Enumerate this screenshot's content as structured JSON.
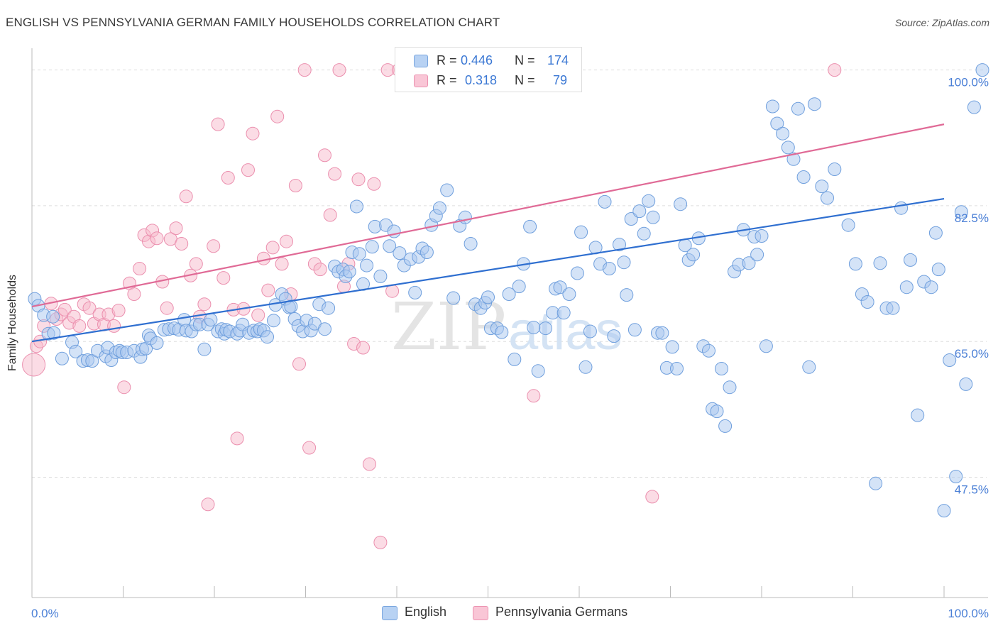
{
  "title": "ENGLISH VS PENNSYLVANIA GERMAN FAMILY HOUSEHOLDS CORRELATION CHART",
  "source": "Source: ZipAtlas.com",
  "watermark": {
    "zip": "ZIP",
    "atlas": "atlas"
  },
  "legend_top": [
    {
      "r_label": "R =",
      "r_value": "0.446",
      "n_label": "N =",
      "n_value": "174"
    },
    {
      "r_label": "R =",
      "r_value": "0.318",
      "n_label": "N =",
      "n_value": "79"
    }
  ],
  "colors": {
    "english_fill": "#a9c8f0",
    "english_stroke": "#6f9fdd",
    "english_line": "#2f6fd0",
    "pg_fill": "#f7b9cc",
    "pg_stroke": "#eb8fae",
    "pg_line": "#e06a96",
    "axis_text": "#4a7fd6",
    "grid": "#dddddd"
  },
  "chart_data": {
    "type": "scatter",
    "title": "ENGLISH VS PENNSYLVANIA GERMAN FAMILY HOUSEHOLDS CORRELATION CHART",
    "xlabel": "",
    "ylabel": "Family Households",
    "xlim": [
      0,
      100
    ],
    "ylim": [
      32,
      101.7
    ],
    "x_tick_labels": [
      "0.0%",
      "100.0%"
    ],
    "y_ticks": [
      47.5,
      65.0,
      82.5,
      100.0
    ],
    "y_tick_labels": [
      "47.5%",
      "65.0%",
      "82.5%",
      "100.0%"
    ],
    "grid": true,
    "legend": "bottom",
    "series": [
      {
        "name": "English",
        "r": 0.446,
        "n": 174,
        "trend": {
          "x": [
            0,
            100
          ],
          "y": [
            65.0,
            83.4
          ]
        },
        "points": [
          [
            0.3,
            70.5
          ],
          [
            0.7,
            69.6
          ],
          [
            1.3,
            68.4
          ],
          [
            1.8,
            66.0
          ],
          [
            2.3,
            68.2
          ],
          [
            2.4,
            66.1
          ],
          [
            3.3,
            62.8
          ],
          [
            4.4,
            64.9
          ],
          [
            4.8,
            63.7
          ],
          [
            5.6,
            62.5
          ],
          [
            6.1,
            62.6
          ],
          [
            6.6,
            62.5
          ],
          [
            7.2,
            63.8
          ],
          [
            8.1,
            63.1
          ],
          [
            8.3,
            64.2
          ],
          [
            8.7,
            62.6
          ],
          [
            9.2,
            63.6
          ],
          [
            9.6,
            63.8
          ],
          [
            9.9,
            63.6
          ],
          [
            10.4,
            63.6
          ],
          [
            11.2,
            63.8
          ],
          [
            11.9,
            63.0
          ],
          [
            12.1,
            64.0
          ],
          [
            12.5,
            64.1
          ],
          [
            12.8,
            65.8
          ],
          [
            13.0,
            65.4
          ],
          [
            13.7,
            64.8
          ],
          [
            14.5,
            66.5
          ],
          [
            15.0,
            66.6
          ],
          [
            15.6,
            66.7
          ],
          [
            16.1,
            66.5
          ],
          [
            16.7,
            67.8
          ],
          [
            16.9,
            66.4
          ],
          [
            17.5,
            66.3
          ],
          [
            18.0,
            67.2
          ],
          [
            18.4,
            67.2
          ],
          [
            18.9,
            64.0
          ],
          [
            19.3,
            67.2
          ],
          [
            19.6,
            67.8
          ],
          [
            20.4,
            66.3
          ],
          [
            20.8,
            66.6
          ],
          [
            21.1,
            66.0
          ],
          [
            21.3,
            66.5
          ],
          [
            21.7,
            66.3
          ],
          [
            22.5,
            66.0
          ],
          [
            22.8,
            66.4
          ],
          [
            23.1,
            67.2
          ],
          [
            23.8,
            66.1
          ],
          [
            24.3,
            66.4
          ],
          [
            24.7,
            66.3
          ],
          [
            25.0,
            66.6
          ],
          [
            25.4,
            66.4
          ],
          [
            25.8,
            65.6
          ],
          [
            26.5,
            67.7
          ],
          [
            26.7,
            69.7
          ],
          [
            27.4,
            71.1
          ],
          [
            27.8,
            70.5
          ],
          [
            28.2,
            69.4
          ],
          [
            28.4,
            69.5
          ],
          [
            28.8,
            67.9
          ],
          [
            29.2,
            67.0
          ],
          [
            29.7,
            66.3
          ],
          [
            30.1,
            67.7
          ],
          [
            30.6,
            66.4
          ],
          [
            31.0,
            67.3
          ],
          [
            31.5,
            69.8
          ],
          [
            32.1,
            66.6
          ],
          [
            32.5,
            69.3
          ],
          [
            33.2,
            74.7
          ],
          [
            33.6,
            74.0
          ],
          [
            34.1,
            74.3
          ],
          [
            34.4,
            73.4
          ],
          [
            34.8,
            74.0
          ],
          [
            35.1,
            76.5
          ],
          [
            35.6,
            82.4
          ],
          [
            35.9,
            76.3
          ],
          [
            36.3,
            72.4
          ],
          [
            36.7,
            74.8
          ],
          [
            37.3,
            77.2
          ],
          [
            37.6,
            79.8
          ],
          [
            38.2,
            73.4
          ],
          [
            38.8,
            80.0
          ],
          [
            39.2,
            77.3
          ],
          [
            39.7,
            79.2
          ],
          [
            40.3,
            76.4
          ],
          [
            40.8,
            74.8
          ],
          [
            41.5,
            75.6
          ],
          [
            42.0,
            71.3
          ],
          [
            42.4,
            75.9
          ],
          [
            42.8,
            77.0
          ],
          [
            43.3,
            76.5
          ],
          [
            43.8,
            80.0
          ],
          [
            44.3,
            81.2
          ],
          [
            44.7,
            82.2
          ],
          [
            45.5,
            84.5
          ],
          [
            46.2,
            70.6
          ],
          [
            46.9,
            79.9
          ],
          [
            47.5,
            81.0
          ],
          [
            48.1,
            77.6
          ],
          [
            48.6,
            69.8
          ],
          [
            49.2,
            69.3
          ],
          [
            49.7,
            70.0
          ],
          [
            50.0,
            70.7
          ],
          [
            50.3,
            66.7
          ],
          [
            51.0,
            66.7
          ],
          [
            51.5,
            66.2
          ],
          [
            52.3,
            71.1
          ],
          [
            52.9,
            62.7
          ],
          [
            53.4,
            72.1
          ],
          [
            53.9,
            75.0
          ],
          [
            54.6,
            79.8
          ],
          [
            55.0,
            66.8
          ],
          [
            55.5,
            61.2
          ],
          [
            56.3,
            66.7
          ],
          [
            57.1,
            68.7
          ],
          [
            57.4,
            71.8
          ],
          [
            57.9,
            72.0
          ],
          [
            58.3,
            68.7
          ],
          [
            58.9,
            71.1
          ],
          [
            59.8,
            73.8
          ],
          [
            60.2,
            79.1
          ],
          [
            60.7,
            61.7
          ],
          [
            61.2,
            66.3
          ],
          [
            61.8,
            77.1
          ],
          [
            62.3,
            75.0
          ],
          [
            62.8,
            83.0
          ],
          [
            63.3,
            74.4
          ],
          [
            63.8,
            65.7
          ],
          [
            64.4,
            77.5
          ],
          [
            64.9,
            75.2
          ],
          [
            65.2,
            71.0
          ],
          [
            65.7,
            80.8
          ],
          [
            66.1,
            66.5
          ],
          [
            66.6,
            81.8
          ],
          [
            67.1,
            78.9
          ],
          [
            67.6,
            83.1
          ],
          [
            68.1,
            81.0
          ],
          [
            68.6,
            66.1
          ],
          [
            69.1,
            66.1
          ],
          [
            69.6,
            61.6
          ],
          [
            70.2,
            64.3
          ],
          [
            70.7,
            61.5
          ],
          [
            71.1,
            82.7
          ],
          [
            71.6,
            77.4
          ],
          [
            72.0,
            75.5
          ],
          [
            72.5,
            76.2
          ],
          [
            73.1,
            78.3
          ],
          [
            73.6,
            64.4
          ],
          [
            74.2,
            63.8
          ],
          [
            74.6,
            56.3
          ],
          [
            75.1,
            56.0
          ],
          [
            75.6,
            61.5
          ],
          [
            76.0,
            54.1
          ],
          [
            76.5,
            59.1
          ],
          [
            77.0,
            74.0
          ],
          [
            77.5,
            74.9
          ],
          [
            78.0,
            79.4
          ],
          [
            78.6,
            75.1
          ],
          [
            79.2,
            78.5
          ],
          [
            79.5,
            76.2
          ],
          [
            80.0,
            78.6
          ],
          [
            80.5,
            64.4
          ],
          [
            81.2,
            95.3
          ],
          [
            81.7,
            93.1
          ],
          [
            82.3,
            91.8
          ],
          [
            82.9,
            90.0
          ],
          [
            83.5,
            88.5
          ],
          [
            84.0,
            95.0
          ],
          [
            84.6,
            86.2
          ],
          [
            85.2,
            61.7
          ],
          [
            85.8,
            95.6
          ],
          [
            86.6,
            85.0
          ],
          [
            87.2,
            83.5
          ],
          [
            88.0,
            87.2
          ],
          [
            89.5,
            80.0
          ],
          [
            90.3,
            75.0
          ],
          [
            91.0,
            71.1
          ],
          [
            91.6,
            70.1
          ],
          [
            92.5,
            46.7
          ],
          [
            93.0,
            75.1
          ],
          [
            93.7,
            69.3
          ],
          [
            94.4,
            69.3
          ],
          [
            95.3,
            82.2
          ],
          [
            95.9,
            72.0
          ],
          [
            96.3,
            75.5
          ],
          [
            97.1,
            55.5
          ],
          [
            97.8,
            72.7
          ],
          [
            98.6,
            72.0
          ],
          [
            99.1,
            79.0
          ],
          [
            99.4,
            74.3
          ],
          [
            100.0,
            43.2
          ],
          [
            100.6,
            62.6
          ],
          [
            101.3,
            47.6
          ],
          [
            101.9,
            81.7
          ],
          [
            102.4,
            59.5
          ],
          [
            103.3,
            95.2
          ],
          [
            104.2,
            100.0
          ]
        ]
      },
      {
        "name": "Pennsylvania Germans",
        "r": 0.318,
        "n": 79,
        "trend": {
          "x": [
            0,
            100
          ],
          "y": [
            69.5,
            93.0
          ]
        },
        "points": [
          [
            0.2,
            62.0
          ],
          [
            0.5,
            64.4
          ],
          [
            0.9,
            65.0
          ],
          [
            1.3,
            67.0
          ],
          [
            2.1,
            69.9
          ],
          [
            2.7,
            67.9
          ],
          [
            3.2,
            68.5
          ],
          [
            3.6,
            69.1
          ],
          [
            4.1,
            67.4
          ],
          [
            4.6,
            68.2
          ],
          [
            5.2,
            67.0
          ],
          [
            5.7,
            69.8
          ],
          [
            6.3,
            69.3
          ],
          [
            6.8,
            67.3
          ],
          [
            7.4,
            68.5
          ],
          [
            7.9,
            67.2
          ],
          [
            8.4,
            68.5
          ],
          [
            9.0,
            67.0
          ],
          [
            9.5,
            69.0
          ],
          [
            10.1,
            59.1
          ],
          [
            10.7,
            72.5
          ],
          [
            11.2,
            71.1
          ],
          [
            11.8,
            74.4
          ],
          [
            12.3,
            78.7
          ],
          [
            12.8,
            77.9
          ],
          [
            13.2,
            79.3
          ],
          [
            13.7,
            78.3
          ],
          [
            14.3,
            72.7
          ],
          [
            14.8,
            69.3
          ],
          [
            15.2,
            78.2
          ],
          [
            15.8,
            79.6
          ],
          [
            16.4,
            77.6
          ],
          [
            16.9,
            83.7
          ],
          [
            17.4,
            73.5
          ],
          [
            18.0,
            75.0
          ],
          [
            18.4,
            68.2
          ],
          [
            18.9,
            69.8
          ],
          [
            19.3,
            44.0
          ],
          [
            19.9,
            77.3
          ],
          [
            20.4,
            93.0
          ],
          [
            21.0,
            73.2
          ],
          [
            21.5,
            86.1
          ],
          [
            22.1,
            69.1
          ],
          [
            22.5,
            52.5
          ],
          [
            23.2,
            69.2
          ],
          [
            23.7,
            87.1
          ],
          [
            24.2,
            91.8
          ],
          [
            24.8,
            68.4
          ],
          [
            25.4,
            75.7
          ],
          [
            25.9,
            71.6
          ],
          [
            26.4,
            77.1
          ],
          [
            26.9,
            94.0
          ],
          [
            27.4,
            75.0
          ],
          [
            27.9,
            77.9
          ],
          [
            28.4,
            71.1
          ],
          [
            28.9,
            85.1
          ],
          [
            29.3,
            62.1
          ],
          [
            29.9,
            100.0
          ],
          [
            30.4,
            51.3
          ],
          [
            31.0,
            75.0
          ],
          [
            31.6,
            74.3
          ],
          [
            32.1,
            89.0
          ],
          [
            32.7,
            81.3
          ],
          [
            33.2,
            86.6
          ],
          [
            33.7,
            100.0
          ],
          [
            34.2,
            72.1
          ],
          [
            34.7,
            75.0
          ],
          [
            35.3,
            64.7
          ],
          [
            35.8,
            85.9
          ],
          [
            36.3,
            64.2
          ],
          [
            37.0,
            49.2
          ],
          [
            37.5,
            85.3
          ],
          [
            38.2,
            39.1
          ],
          [
            39.0,
            100.0
          ],
          [
            39.5,
            71.5
          ],
          [
            40.2,
            100.0
          ],
          [
            55.0,
            58.0
          ],
          [
            68.0,
            45.0
          ],
          [
            88.0,
            100.0
          ]
        ]
      }
    ]
  }
}
